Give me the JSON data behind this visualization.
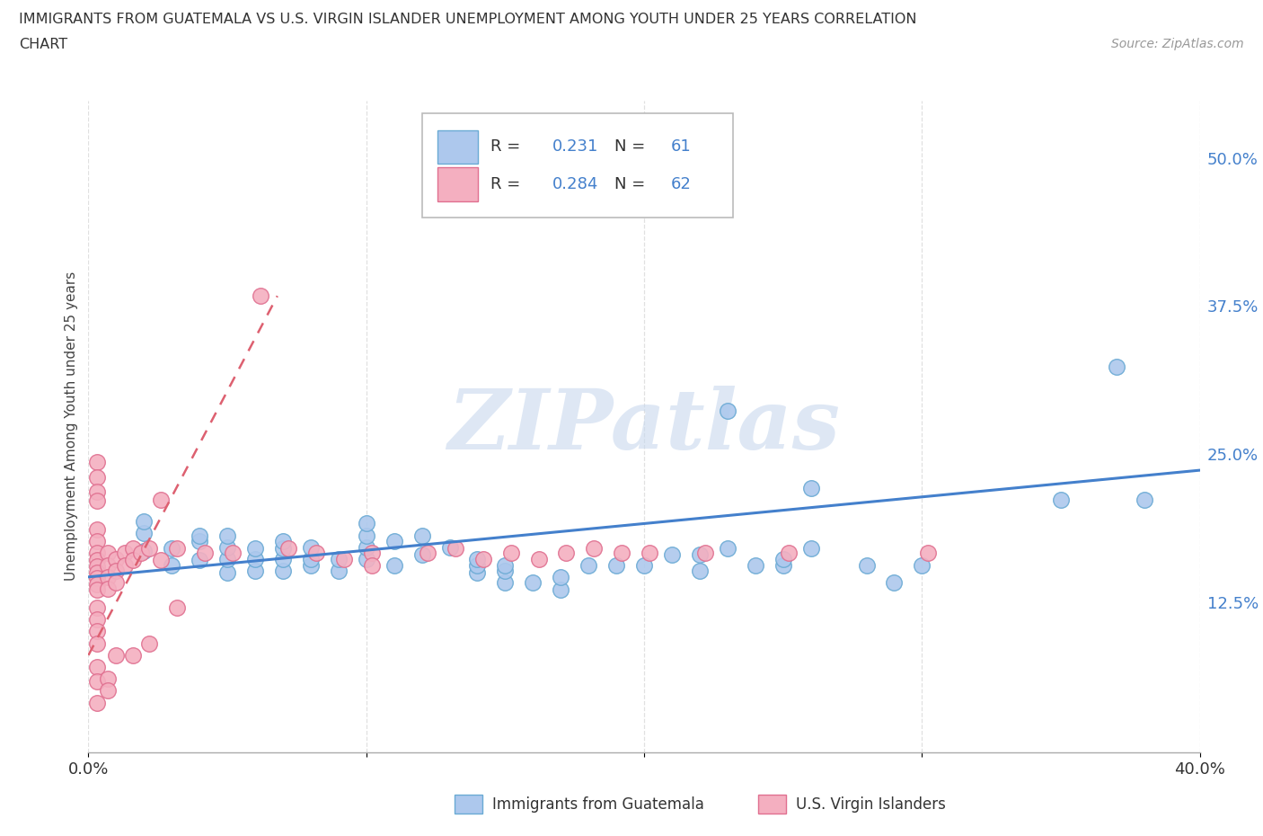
{
  "title_line1": "IMMIGRANTS FROM GUATEMALA VS U.S. VIRGIN ISLANDER UNEMPLOYMENT AMONG YOUTH UNDER 25 YEARS CORRELATION",
  "title_line2": "CHART",
  "source_text": "Source: ZipAtlas.com",
  "ylabel": "Unemployment Among Youth under 25 years",
  "xlim": [
    0.0,
    0.4
  ],
  "ylim": [
    0.0,
    0.55
  ],
  "xtick_vals": [
    0.0,
    0.1,
    0.2,
    0.3,
    0.4
  ],
  "xtick_labels": [
    "0.0%",
    "",
    "",
    "",
    "40.0%"
  ],
  "ytick_labels_right": [
    "12.5%",
    "25.0%",
    "37.5%",
    "50.0%"
  ],
  "ytick_vals_right": [
    0.125,
    0.25,
    0.375,
    0.5
  ],
  "r_blue": 0.231,
  "n_blue": 61,
  "r_pink": 0.284,
  "n_pink": 62,
  "blue_color": "#adc8ed",
  "pink_color": "#f4afc0",
  "blue_edge": "#6aaad4",
  "pink_edge": "#e07090",
  "trend_blue_color": "#4480cc",
  "trend_pink_color": "#dd6070",
  "watermark": "ZIPatlas",
  "blue_scatter": [
    [
      0.02,
      0.17
    ],
    [
      0.02,
      0.185
    ],
    [
      0.02,
      0.195
    ],
    [
      0.03,
      0.158
    ],
    [
      0.03,
      0.172
    ],
    [
      0.04,
      0.162
    ],
    [
      0.04,
      0.178
    ],
    [
      0.04,
      0.183
    ],
    [
      0.05,
      0.152
    ],
    [
      0.05,
      0.163
    ],
    [
      0.05,
      0.173
    ],
    [
      0.05,
      0.183
    ],
    [
      0.06,
      0.153
    ],
    [
      0.06,
      0.163
    ],
    [
      0.06,
      0.172
    ],
    [
      0.07,
      0.153
    ],
    [
      0.07,
      0.163
    ],
    [
      0.07,
      0.172
    ],
    [
      0.07,
      0.178
    ],
    [
      0.08,
      0.158
    ],
    [
      0.08,
      0.163
    ],
    [
      0.08,
      0.173
    ],
    [
      0.09,
      0.153
    ],
    [
      0.09,
      0.163
    ],
    [
      0.1,
      0.163
    ],
    [
      0.1,
      0.173
    ],
    [
      0.1,
      0.183
    ],
    [
      0.1,
      0.193
    ],
    [
      0.11,
      0.158
    ],
    [
      0.11,
      0.178
    ],
    [
      0.12,
      0.167
    ],
    [
      0.12,
      0.183
    ],
    [
      0.13,
      0.173
    ],
    [
      0.14,
      0.152
    ],
    [
      0.14,
      0.158
    ],
    [
      0.14,
      0.163
    ],
    [
      0.15,
      0.143
    ],
    [
      0.15,
      0.153
    ],
    [
      0.15,
      0.158
    ],
    [
      0.16,
      0.143
    ],
    [
      0.17,
      0.137
    ],
    [
      0.17,
      0.148
    ],
    [
      0.18,
      0.158
    ],
    [
      0.19,
      0.158
    ],
    [
      0.2,
      0.158
    ],
    [
      0.21,
      0.167
    ],
    [
      0.22,
      0.153
    ],
    [
      0.22,
      0.167
    ],
    [
      0.23,
      0.172
    ],
    [
      0.23,
      0.288
    ],
    [
      0.24,
      0.158
    ],
    [
      0.25,
      0.158
    ],
    [
      0.25,
      0.163
    ],
    [
      0.26,
      0.172
    ],
    [
      0.26,
      0.223
    ],
    [
      0.28,
      0.158
    ],
    [
      0.29,
      0.143
    ],
    [
      0.3,
      0.158
    ],
    [
      0.35,
      0.213
    ],
    [
      0.37,
      0.325
    ],
    [
      0.38,
      0.213
    ]
  ],
  "pink_scatter": [
    [
      0.003,
      0.245
    ],
    [
      0.003,
      0.232
    ],
    [
      0.003,
      0.22
    ],
    [
      0.003,
      0.212
    ],
    [
      0.003,
      0.188
    ],
    [
      0.003,
      0.178
    ],
    [
      0.003,
      0.168
    ],
    [
      0.003,
      0.162
    ],
    [
      0.003,
      0.157
    ],
    [
      0.003,
      0.152
    ],
    [
      0.003,
      0.147
    ],
    [
      0.003,
      0.142
    ],
    [
      0.003,
      0.137
    ],
    [
      0.003,
      0.122
    ],
    [
      0.003,
      0.112
    ],
    [
      0.003,
      0.102
    ],
    [
      0.003,
      0.092
    ],
    [
      0.003,
      0.072
    ],
    [
      0.003,
      0.06
    ],
    [
      0.003,
      0.042
    ],
    [
      0.007,
      0.168
    ],
    [
      0.007,
      0.158
    ],
    [
      0.007,
      0.148
    ],
    [
      0.007,
      0.138
    ],
    [
      0.007,
      0.062
    ],
    [
      0.007,
      0.052
    ],
    [
      0.01,
      0.163
    ],
    [
      0.01,
      0.153
    ],
    [
      0.01,
      0.143
    ],
    [
      0.01,
      0.082
    ],
    [
      0.013,
      0.168
    ],
    [
      0.013,
      0.158
    ],
    [
      0.016,
      0.172
    ],
    [
      0.016,
      0.162
    ],
    [
      0.016,
      0.082
    ],
    [
      0.019,
      0.168
    ],
    [
      0.022,
      0.172
    ],
    [
      0.022,
      0.092
    ],
    [
      0.026,
      0.213
    ],
    [
      0.026,
      0.162
    ],
    [
      0.032,
      0.172
    ],
    [
      0.032,
      0.122
    ],
    [
      0.042,
      0.168
    ],
    [
      0.052,
      0.168
    ],
    [
      0.062,
      0.385
    ],
    [
      0.072,
      0.172
    ],
    [
      0.082,
      0.168
    ],
    [
      0.092,
      0.163
    ],
    [
      0.102,
      0.168
    ],
    [
      0.102,
      0.158
    ],
    [
      0.122,
      0.168
    ],
    [
      0.132,
      0.172
    ],
    [
      0.142,
      0.163
    ],
    [
      0.152,
      0.168
    ],
    [
      0.162,
      0.163
    ],
    [
      0.172,
      0.168
    ],
    [
      0.182,
      0.172
    ],
    [
      0.192,
      0.168
    ],
    [
      0.202,
      0.168
    ],
    [
      0.222,
      0.168
    ],
    [
      0.252,
      0.168
    ],
    [
      0.302,
      0.168
    ]
  ],
  "blue_trend_x": [
    0.0,
    0.4
  ],
  "blue_trend_y": [
    0.148,
    0.238
  ],
  "pink_trend_x": [
    0.0,
    0.068
  ],
  "pink_trend_y": [
    0.082,
    0.385
  ],
  "grid_color": "#dddddd",
  "grid_dashes": [
    4,
    3
  ]
}
